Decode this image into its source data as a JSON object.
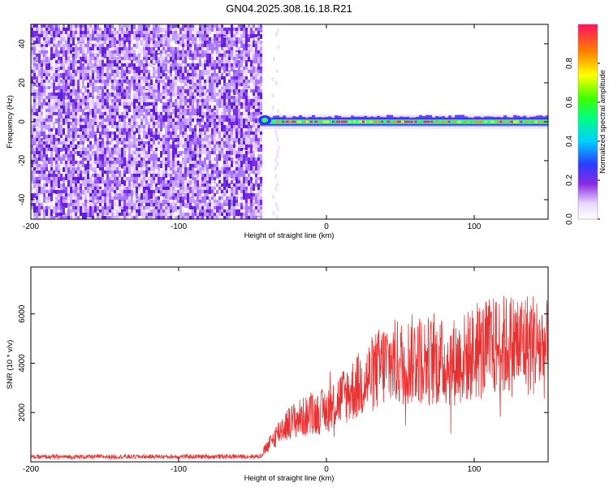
{
  "title": "GN04.2025.308.16.18.R21",
  "chart_data": [
    {
      "type": "heatmap",
      "xlabel": "Height of straight line (km)",
      "ylabel": "Frequency (Hz)",
      "xlim": [
        -200,
        150
      ],
      "ylim": [
        -50,
        50
      ],
      "xticks": [
        -200,
        -100,
        0,
        100
      ],
      "yticks": [
        -40,
        -20,
        0,
        20,
        40
      ],
      "noise_region_x": [
        -200,
        -45
      ],
      "signal_x_start": -45,
      "signal_frequency_hz": 0,
      "colorbar": {
        "label": "Normalized spectral amplitude",
        "range": [
          0.0,
          1.0
        ],
        "ticks": [
          "0.0",
          "0.2",
          "0.4",
          "0.6",
          "0.8"
        ]
      }
    },
    {
      "type": "line",
      "xlabel": "Height of straight line (km)",
      "ylabel": "SNR (10 * v/v)",
      "xlim": [
        -200,
        150
      ],
      "ylim": [
        0,
        7900
      ],
      "xticks": [
        -200,
        -100,
        0,
        100
      ],
      "yticks": [
        2000,
        4000,
        6000
      ],
      "color": "#e83232",
      "series": [
        {
          "x": [
            -200,
            -45,
            -40,
            -30,
            -20,
            -10,
            0,
            10,
            20,
            30,
            40,
            50,
            60,
            70,
            80,
            90,
            100,
            110,
            120,
            130,
            140,
            150
          ],
          "values": [
            200,
            220,
            600,
            1400,
            1750,
            1900,
            2100,
            2600,
            3000,
            3500,
            4000,
            4000,
            4200,
            4100,
            4000,
            4100,
            4400,
            4600,
            4700,
            4800,
            4800,
            4500
          ]
        }
      ]
    }
  ],
  "ticks": {
    "top_x": [
      "-200",
      "-100",
      "0",
      "100"
    ],
    "top_y": [
      "-40",
      "-20",
      "0",
      "20",
      "40"
    ],
    "bot_x": [
      "-200",
      "-100",
      "0",
      "100"
    ],
    "bot_y": [
      "2000",
      "4000",
      "6000"
    ]
  }
}
